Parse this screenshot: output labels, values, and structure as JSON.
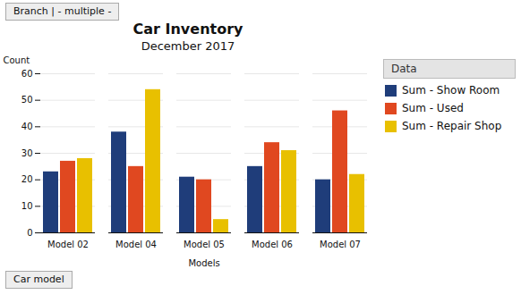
{
  "chart_data": {
    "type": "bar",
    "title": "Car Inventory",
    "subtitle": "December 2017",
    "xlabel": "Models",
    "ylabel": "Count",
    "categories": [
      "Model 02",
      "Model 04",
      "Model 05",
      "Model 06",
      "Model 07"
    ],
    "series": [
      {
        "name": "Sum - Show Room",
        "color": "#1f3d7a",
        "values": [
          23,
          38,
          21,
          25,
          20
        ]
      },
      {
        "name": "Sum - Used",
        "color": "#e04820",
        "values": [
          27,
          25,
          20,
          34,
          46
        ]
      },
      {
        "name": "Sum - Repair Shop",
        "color": "#e8c000",
        "values": [
          28,
          54,
          5,
          31,
          22
        ]
      }
    ],
    "ylim": [
      0,
      60
    ],
    "yticks": [
      0,
      10,
      20,
      30,
      40,
      50,
      60
    ],
    "grid": true,
    "legend_title": "Data",
    "annotations": [
      "Branch | - multiple -",
      "Car model"
    ]
  }
}
